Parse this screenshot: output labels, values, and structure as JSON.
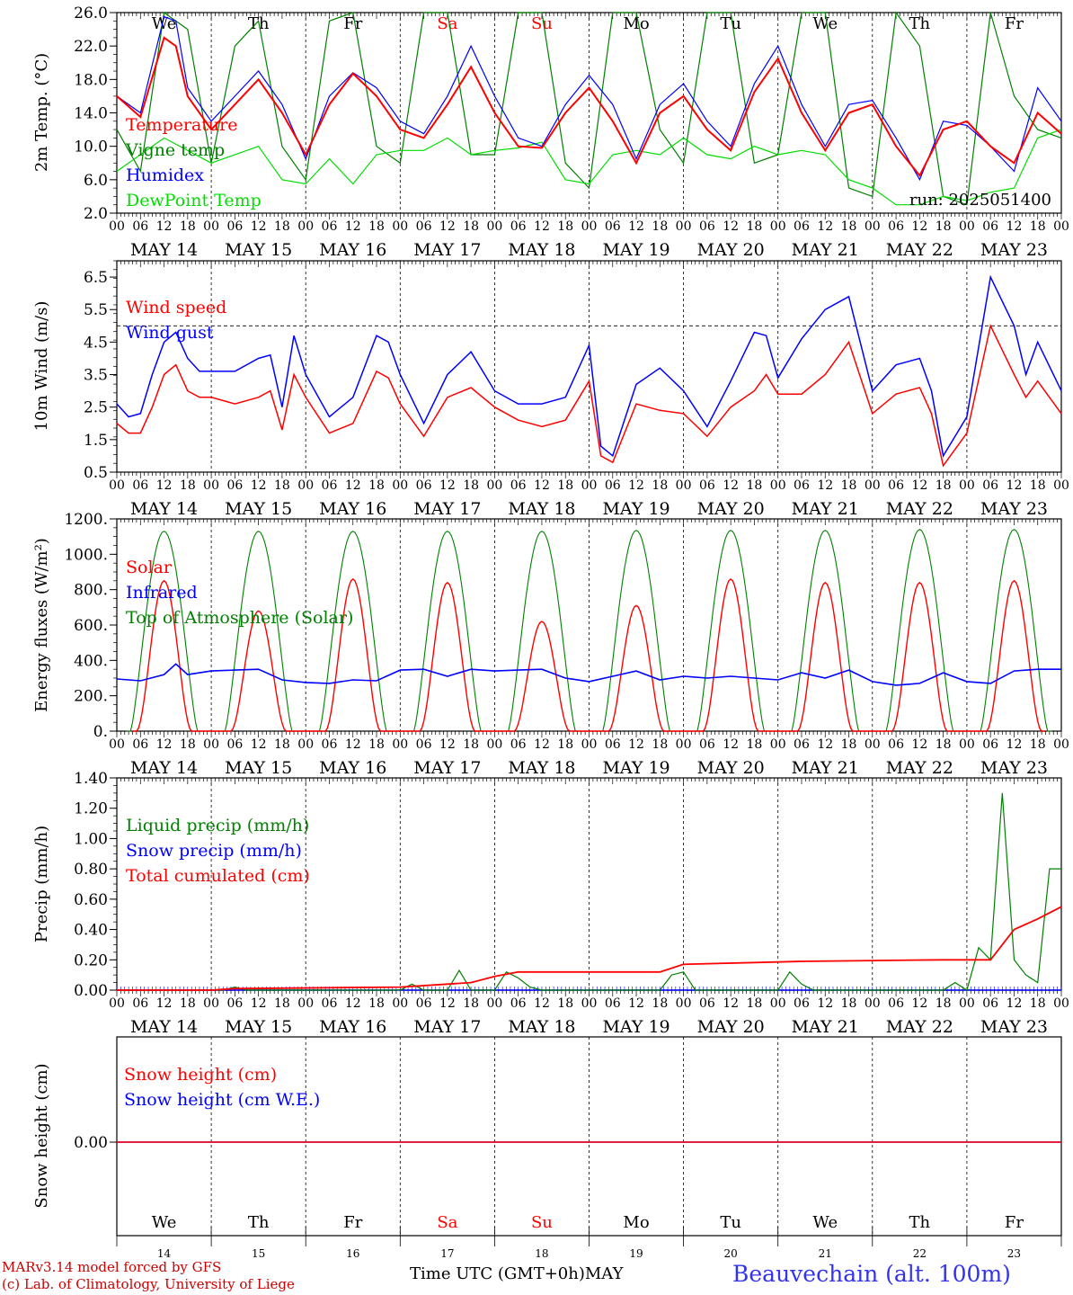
{
  "days": [
    "14",
    "15",
    "16",
    "17",
    "18",
    "19",
    "20",
    "21",
    "22",
    "23"
  ],
  "day_names": [
    "We",
    "Th",
    "Fr",
    "Sa",
    "Su",
    "Mo",
    "Tu",
    "We",
    "Th",
    "Fr"
  ],
  "weekend_color": "#ff0000",
  "day_labels": [
    "MAY 14",
    "MAY 15",
    "MAY 16",
    "MAY 17",
    "MAY 18",
    "MAY 19",
    "MAY 20",
    "MAY 21",
    "MAY 22",
    "MAY 23"
  ],
  "hour_labels": [
    "00",
    "06",
    "12",
    "18"
  ],
  "hour_end_label": "00",
  "month_label": "MAY",
  "time_axis_label": "Time UTC (GMT+0h)",
  "location": "Beauvechain (alt. 100m)",
  "credit_line1": "MARv3.14 model forced by GFS",
  "credit_line2": "(c) Lab. of Climatology, University of Liege",
  "colors": {
    "red": "#ff0000",
    "blue": "#0000ff",
    "green": "#008000",
    "lightgreen": "#00dd00",
    "credit": "#cc0000",
    "location": "#3333ee"
  },
  "chart_data": [
    {
      "id": "temp",
      "type": "line",
      "ylabel": "2m Temp. (°C)",
      "ylim": [
        2,
        26
      ],
      "yticks": [
        "2.0",
        "6.0",
        "10.0",
        "14.0",
        "18.0",
        "22.0",
        "26.0"
      ],
      "annotation": "run: 2025051400",
      "x_unit": "hours since May 14 00 UTC",
      "series": [
        {
          "name": "Temperature",
          "color": "#ff0000",
          "x": [
            0,
            6,
            12,
            15,
            18,
            24,
            30,
            36,
            42,
            48,
            54,
            60,
            66,
            72,
            78,
            84,
            90,
            96,
            102,
            108,
            114,
            120,
            126,
            132,
            138,
            144,
            150,
            156,
            162,
            168,
            174,
            180,
            186,
            192,
            198,
            204,
            210,
            216,
            222,
            228,
            234,
            240
          ],
          "y": [
            16,
            13.5,
            23,
            22,
            16,
            12,
            15,
            18,
            14,
            9,
            15,
            18.7,
            16,
            12,
            11,
            15,
            19.5,
            14,
            10,
            9.8,
            14,
            17,
            13,
            8,
            14,
            16,
            12,
            9.5,
            16.5,
            20.5,
            14,
            9.5,
            14,
            15,
            10,
            6.5,
            12,
            13,
            10,
            8,
            14,
            11.5
          ]
        },
        {
          "name": "Vigne temp",
          "color": "#008000",
          "x": [
            0,
            6,
            12,
            18,
            24,
            30,
            36,
            42,
            48,
            54,
            60,
            66,
            72,
            78,
            84,
            90,
            96,
            102,
            108,
            114,
            120,
            126,
            132,
            138,
            144,
            150,
            156,
            162,
            168,
            174,
            180,
            186,
            192,
            198,
            204,
            210,
            216,
            222,
            228,
            234,
            240
          ],
          "y": [
            12,
            7,
            30,
            24,
            8,
            22,
            25,
            10,
            6,
            25,
            30,
            10,
            8,
            30,
            32,
            9,
            9,
            30,
            26,
            8,
            5,
            28,
            27,
            12,
            8,
            30,
            35,
            8,
            9,
            30,
            28,
            5,
            4,
            26,
            22,
            4,
            3,
            26,
            16,
            12,
            11
          ]
        },
        {
          "name": "Humidex",
          "color": "#0000ff",
          "x": [
            0,
            6,
            12,
            15,
            18,
            24,
            30,
            36,
            42,
            48,
            54,
            60,
            66,
            72,
            78,
            84,
            90,
            96,
            102,
            108,
            114,
            120,
            126,
            132,
            138,
            144,
            150,
            156,
            162,
            168,
            174,
            180,
            186,
            192,
            198,
            204,
            210,
            216,
            222,
            228,
            234,
            240
          ],
          "y": [
            16,
            14,
            25.5,
            25,
            17,
            13,
            16,
            19,
            15,
            8.5,
            16,
            18.8,
            17,
            13,
            11.5,
            16,
            22,
            16,
            11,
            10,
            15,
            18.5,
            15,
            8.5,
            15,
            17.5,
            13,
            10,
            17.5,
            22,
            15,
            10,
            15,
            15.5,
            11,
            6,
            13,
            12.5,
            10,
            7,
            17,
            13
          ]
        },
        {
          "name": "DewPoint Temp",
          "color": "#00dd00",
          "x": [
            0,
            12,
            24,
            36,
            42,
            48,
            54,
            60,
            66,
            72,
            78,
            84,
            90,
            96,
            102,
            108,
            114,
            120,
            126,
            132,
            138,
            144,
            150,
            156,
            162,
            168,
            174,
            180,
            186,
            192,
            198,
            204,
            210,
            216,
            222,
            228,
            234,
            240
          ],
          "y": [
            7,
            11,
            8,
            10,
            6,
            5.5,
            8.5,
            5.5,
            9,
            9.5,
            9.5,
            11,
            9,
            9.5,
            9.8,
            10.5,
            6,
            5.5,
            9,
            9.5,
            9,
            11,
            9,
            8.5,
            10,
            9,
            9.5,
            9,
            6,
            5,
            3,
            3,
            4,
            3.5,
            4.5,
            5,
            11,
            12
          ]
        }
      ],
      "legend": [
        "Temperature",
        "Vigne temp",
        "Humidex",
        "DewPoint Temp"
      ]
    },
    {
      "id": "wind",
      "type": "line",
      "ylabel": "10m Wind (m/s)",
      "ylim": [
        0.5,
        7
      ],
      "yticks": [
        "0.5",
        "1.5",
        "2.5",
        "3.5",
        "4.5",
        "5.5",
        "6.5"
      ],
      "ref_value": 5,
      "series": [
        {
          "name": "Wind speed",
          "color": "#ff0000",
          "x": [
            0,
            3,
            6,
            9,
            12,
            15,
            18,
            21,
            24,
            30,
            36,
            39,
            42,
            45,
            48,
            54,
            60,
            66,
            69,
            72,
            78,
            84,
            90,
            96,
            102,
            108,
            114,
            120,
            123,
            126,
            132,
            138,
            144,
            150,
            156,
            162,
            165,
            168,
            174,
            180,
            186,
            192,
            198,
            204,
            207,
            210,
            216,
            222,
            228,
            231,
            234,
            240
          ],
          "y": [
            2,
            1.7,
            1.7,
            2.5,
            3.5,
            3.8,
            3,
            2.8,
            2.8,
            2.6,
            2.8,
            3,
            1.8,
            3.5,
            2.8,
            1.7,
            2,
            3.6,
            3.4,
            2.6,
            1.6,
            2.8,
            3.1,
            2.5,
            2.1,
            1.9,
            2.1,
            3.3,
            1,
            0.8,
            2.6,
            2.4,
            2.3,
            1.6,
            2.5,
            3,
            3.5,
            2.9,
            2.9,
            3.5,
            4.5,
            2.3,
            2.9,
            3.1,
            2.3,
            0.7,
            1.7,
            5,
            3.5,
            2.8,
            3.3,
            2.3
          ]
        },
        {
          "name": "Wind gust",
          "color": "#0000ff",
          "x": [
            0,
            3,
            6,
            9,
            12,
            15,
            18,
            21,
            24,
            30,
            36,
            39,
            42,
            45,
            48,
            54,
            60,
            66,
            69,
            72,
            78,
            84,
            90,
            96,
            102,
            108,
            114,
            120,
            123,
            126,
            132,
            138,
            144,
            150,
            156,
            162,
            165,
            168,
            174,
            180,
            186,
            192,
            198,
            204,
            207,
            210,
            216,
            222,
            228,
            231,
            234,
            240
          ],
          "y": [
            2.6,
            2.2,
            2.3,
            3.5,
            4.5,
            4.8,
            4,
            3.6,
            3.6,
            3.6,
            4,
            4.1,
            2.5,
            4.7,
            3.5,
            2.2,
            2.8,
            4.7,
            4.5,
            3.5,
            2,
            3.5,
            4.2,
            3,
            2.6,
            2.6,
            2.8,
            4.4,
            1.3,
            1,
            3.2,
            3.7,
            3,
            1.9,
            3.3,
            4.8,
            4.7,
            3.4,
            4.6,
            5.5,
            5.9,
            3,
            3.8,
            4,
            3,
            1,
            2.2,
            6.5,
            5,
            3.5,
            4.5,
            3
          ]
        }
      ],
      "legend": [
        "Wind speed",
        "Wind gust"
      ]
    },
    {
      "id": "energy",
      "type": "line",
      "ylabel": "Energy fluxes (W/m²)",
      "ylim": [
        0,
        1200
      ],
      "yticks": [
        "0.",
        "200.",
        "400.",
        "600.",
        "800.",
        "1000.",
        "1200."
      ],
      "series": [
        {
          "name": "Solar",
          "color": "#ff0000",
          "peaks": [
            850,
            680,
            860,
            840,
            620,
            710,
            860,
            840,
            840,
            850
          ]
        },
        {
          "name": "Infrared",
          "color": "#0000ff",
          "x": [
            0,
            6,
            12,
            15,
            18,
            24,
            30,
            36,
            42,
            48,
            54,
            60,
            66,
            72,
            78,
            84,
            90,
            96,
            102,
            108,
            114,
            120,
            126,
            132,
            138,
            144,
            150,
            156,
            162,
            168,
            174,
            180,
            186,
            192,
            198,
            204,
            210,
            216,
            222,
            228,
            234,
            240
          ],
          "y": [
            295,
            285,
            320,
            380,
            320,
            340,
            345,
            350,
            290,
            275,
            270,
            290,
            285,
            345,
            350,
            310,
            350,
            340,
            345,
            350,
            300,
            280,
            310,
            340,
            290,
            310,
            300,
            310,
            300,
            290,
            330,
            300,
            345,
            280,
            260,
            270,
            330,
            280,
            270,
            340,
            350,
            350
          ]
        },
        {
          "name": "Top of Atmosphere (Solar)",
          "color": "#008000",
          "peaks": [
            1130,
            1130,
            1130,
            1130,
            1130,
            1135,
            1135,
            1135,
            1140,
            1140
          ]
        }
      ],
      "legend": [
        "Solar",
        "Infrared",
        "Top of Atmosphere (Solar)"
      ]
    },
    {
      "id": "precip",
      "type": "line",
      "ylabel": "Precip (mm/h)",
      "ylim": [
        0,
        1.4
      ],
      "yticks": [
        "0.00",
        "0.20",
        "0.40",
        "0.60",
        "0.80",
        "1.00",
        "1.20",
        "1.40"
      ],
      "series": [
        {
          "name": "Liquid precip (mm/h)",
          "color": "#008000",
          "x": [
            0,
            27,
            30,
            33,
            72,
            75,
            78,
            84,
            87,
            90,
            96,
            99,
            102,
            105,
            108,
            138,
            141,
            144,
            147,
            168,
            171,
            174,
            177,
            210,
            213,
            216,
            219,
            222,
            225,
            228,
            231,
            234,
            237,
            240
          ],
          "y": [
            0,
            0,
            0.02,
            0,
            0,
            0.04,
            0,
            0,
            0.13,
            0,
            0,
            0.12,
            0.08,
            0.02,
            0,
            0,
            0.1,
            0.12,
            0,
            0,
            0.12,
            0.04,
            0,
            0,
            0.05,
            0,
            0.28,
            0.2,
            1.3,
            0.2,
            0.1,
            0.05,
            0.8,
            0.8
          ]
        },
        {
          "name": "Snow precip (mm/h)",
          "color": "#0000ff",
          "x": [
            0,
            240
          ],
          "y": [
            0,
            0
          ]
        },
        {
          "name": "Total cumulated (cm)",
          "color": "#ff0000",
          "x": [
            0,
            24,
            30,
            72,
            84,
            90,
            96,
            102,
            108,
            138,
            144,
            174,
            210,
            222,
            228,
            234,
            240
          ],
          "y": [
            0,
            0,
            0.01,
            0.02,
            0.04,
            0.05,
            0.09,
            0.12,
            0.12,
            0.12,
            0.17,
            0.19,
            0.2,
            0.2,
            0.4,
            0.47,
            0.55
          ]
        }
      ],
      "legend": [
        "Liquid precip (mm/h)",
        "Snow precip (mm/h)",
        "Total cumulated (cm)"
      ]
    },
    {
      "id": "snow",
      "type": "line",
      "ylabel": "Snow height (cm)",
      "yticks": [
        "0.00"
      ],
      "series": [
        {
          "name": "Snow height (cm)",
          "color": "#ff0000",
          "x": [
            0,
            240
          ],
          "y": [
            0,
            0
          ]
        },
        {
          "name": "Snow height (cm W.E.)",
          "color": "#0000ff",
          "x": [
            0,
            240
          ],
          "y": [
            0,
            0
          ]
        }
      ],
      "legend": [
        "Snow height (cm)",
        "Snow height (cm W.E.)"
      ]
    }
  ]
}
